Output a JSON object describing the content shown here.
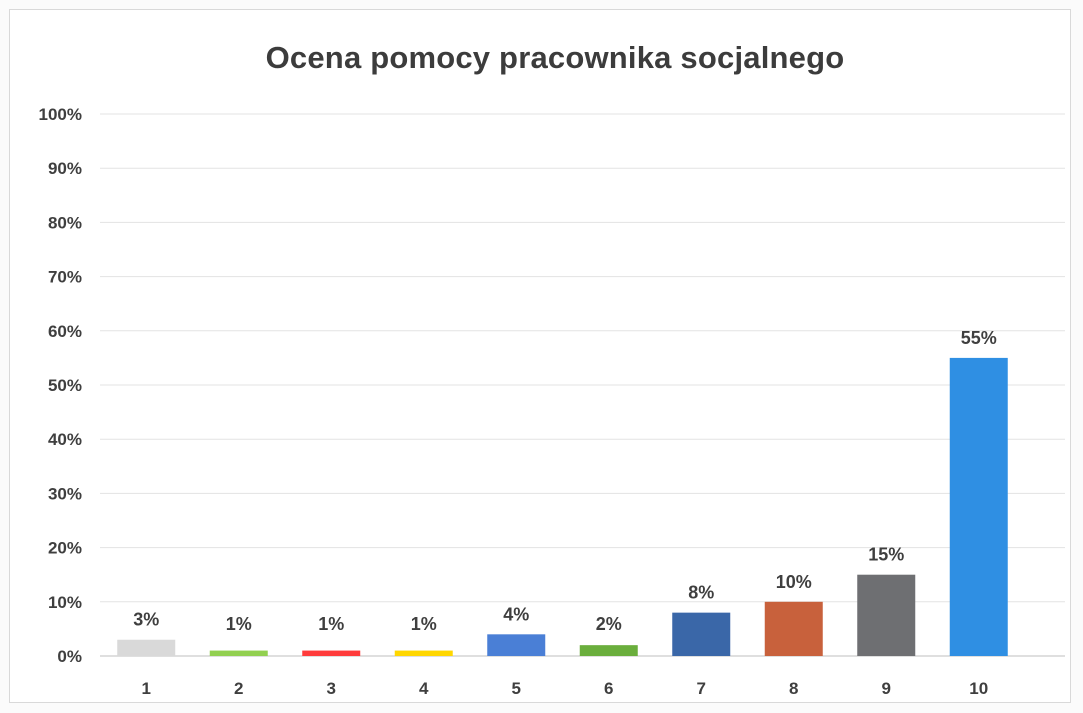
{
  "chart_data": {
    "type": "bar",
    "title": "Ocena pomocy pracownika socjalnego",
    "xlabel": "",
    "ylabel": "",
    "categories": [
      "1",
      "2",
      "3",
      "4",
      "5",
      "6",
      "7",
      "8",
      "9",
      "10"
    ],
    "values": [
      3,
      1,
      1,
      1,
      4,
      2,
      8,
      10,
      15,
      55
    ],
    "data_labels": [
      "3%",
      "1%",
      "1%",
      "1%",
      "4%",
      "2%",
      "8%",
      "10%",
      "15%",
      "55%"
    ],
    "bar_colors": [
      "#d9d9d9",
      "#92d050",
      "#ff3b3b",
      "#ffd700",
      "#4a7fd6",
      "#6aae3c",
      "#3a67a8",
      "#c8613c",
      "#6e6f72",
      "#2f8fe3"
    ],
    "yticks": [
      "0%",
      "10%",
      "20%",
      "30%",
      "40%",
      "50%",
      "60%",
      "70%",
      "80%",
      "90%",
      "100%"
    ],
    "ylim": [
      0,
      100
    ],
    "grid": true,
    "legend": "none"
  }
}
